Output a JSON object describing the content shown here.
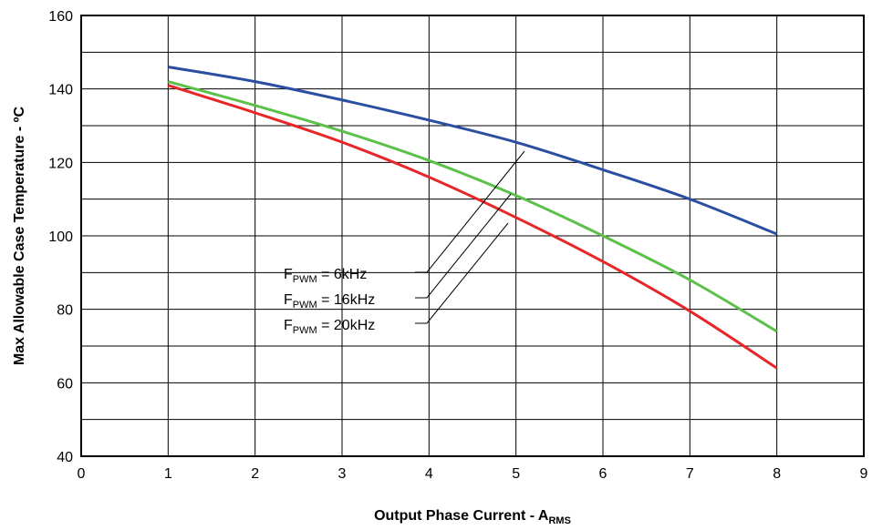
{
  "chart_data": {
    "type": "line",
    "xlabel": "Output Phase Current - A",
    "xlabel_sub": "RMS",
    "ylabel": "Max Allowable Case Temperature - ºC",
    "xlim": [
      0,
      9
    ],
    "ylim": [
      40,
      160
    ],
    "x_ticks": [
      "0",
      "1",
      "2",
      "3",
      "4",
      "5",
      "6",
      "7",
      "8",
      "9"
    ],
    "y_ticks": [
      "40",
      "60",
      "80",
      "100",
      "120",
      "140",
      "160"
    ],
    "grid": true,
    "x": [
      1,
      2,
      3,
      4,
      5,
      6,
      7,
      8
    ],
    "series": [
      {
        "name_main": "F",
        "name_sub": "PWM",
        "name_rest": " = 6kHz",
        "color": "#2a4ea0",
        "values": [
          146,
          142,
          137,
          131.5,
          125.5,
          118,
          110,
          100.5
        ]
      },
      {
        "name_main": "F",
        "name_sub": "PWM",
        "name_rest": " = 16kHz",
        "color": "#5cc04a",
        "values": [
          142,
          135.5,
          128.5,
          120.5,
          111,
          100,
          88,
          74
        ]
      },
      {
        "name_main": "F",
        "name_sub": "PWM",
        "name_rest": " = 20kHz",
        "color": "#e8262a",
        "values": [
          141,
          133.5,
          125.5,
          116,
          105,
          93,
          79.5,
          64
        ]
      }
    ]
  }
}
